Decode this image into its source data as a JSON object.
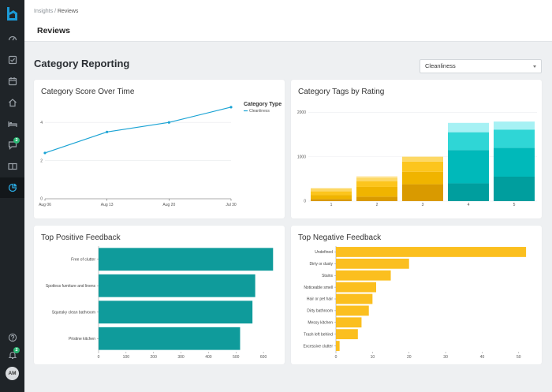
{
  "breadcrumb": {
    "parent": "Insights",
    "separator": " / ",
    "current": "Reviews"
  },
  "page": {
    "title": "Reviews"
  },
  "section": {
    "title": "Category Reporting"
  },
  "category_select": {
    "value": "Cleanliness"
  },
  "sidebar": {
    "items": [
      {
        "icon": "dashboard-icon"
      },
      {
        "icon": "checkbox-icon"
      },
      {
        "icon": "calendar-icon"
      },
      {
        "icon": "home-icon"
      },
      {
        "icon": "bed-icon"
      },
      {
        "icon": "chat-icon",
        "badge": "2"
      },
      {
        "icon": "book-icon"
      },
      {
        "icon": "insights-icon"
      }
    ],
    "bottom": [
      {
        "icon": "help-icon"
      },
      {
        "icon": "bell-icon",
        "badge": "2"
      }
    ],
    "avatar": "AM",
    "colors": {
      "background": "#1f2428",
      "active": "#13171a",
      "badge": "#2bb673",
      "logo": "#1c9ad6"
    }
  },
  "cards": {
    "score_over_time": {
      "title": "Category Score Over Time"
    },
    "tags_by_rating": {
      "title": "Category Tags by Rating"
    },
    "top_positive": {
      "title": "Top Positive Feedback"
    },
    "top_negative": {
      "title": "Top Negative Feedback"
    }
  },
  "chart_data": [
    {
      "id": "score_over_time",
      "type": "line",
      "title": "Category Score Over Time",
      "x_ticks": [
        "Aug 06",
        "Aug 13",
        "Aug 20",
        "Jul 30"
      ],
      "x": [
        0,
        1,
        2,
        3
      ],
      "series": [
        {
          "name": "Cleanliness",
          "values": [
            2.4,
            3.5,
            4.0,
            4.8
          ],
          "color": "#1aa3d4"
        }
      ],
      "legend_title": "Category Type",
      "ylim": [
        0,
        5
      ],
      "y_ticks": [
        0,
        2,
        4
      ],
      "grid": true
    },
    {
      "id": "tags_by_rating",
      "type": "bar",
      "stacked": true,
      "title": "Category Tags by Rating",
      "categories": [
        "1",
        "2",
        "3",
        "4",
        "5"
      ],
      "series": [
        {
          "values": [
            50,
            100,
            380,
            400,
            550
          ],
          "color": "#d99a00"
        },
        {
          "values": [
            90,
            220,
            280,
            750,
            650
          ],
          "color": "#f0b400"
        },
        {
          "values": [
            80,
            130,
            230,
            400,
            410
          ],
          "color": "#fcc51d"
        },
        {
          "values": [
            70,
            80,
            110,
            210,
            180
          ],
          "color": "#fdd865"
        },
        {
          "values": [
            0,
            30,
            0,
            0,
            0
          ],
          "color": "#ffe9a6"
        }
      ],
      "overlay_colors": [
        "#009e9e",
        "#00b9ba",
        "#2fd6d6",
        "#a6f1f4"
      ],
      "ylim": [
        0,
        2200
      ],
      "y_ticks": [
        0,
        1000,
        2000
      ]
    },
    {
      "id": "top_positive",
      "type": "bar",
      "orientation": "horizontal",
      "title": "Top Positive Feedback",
      "categories": [
        "Free of clutter",
        "Spotless furniture and linens",
        "Squeaky clean bathroom",
        "Pristine kitchen"
      ],
      "values": [
        635,
        570,
        560,
        515
      ],
      "color": "#0f9b9b",
      "xlim": [
        0,
        660
      ],
      "x_ticks": [
        0,
        100,
        200,
        300,
        400,
        500,
        600
      ]
    },
    {
      "id": "top_negative",
      "type": "bar",
      "orientation": "horizontal",
      "title": "Top Negative Feedback",
      "categories": [
        "Undefined",
        "Dirty or dusty",
        "Stains",
        "Noticeable smell",
        "Hair or pet hair",
        "Dirty bathroom",
        "Messy kitchen",
        "Trash left behind",
        "Excessive clutter"
      ],
      "values": [
        52,
        20,
        15,
        11,
        10,
        9,
        7,
        6,
        1
      ],
      "color": "#fbbf1f",
      "xlim": [
        0,
        55
      ],
      "x_ticks": [
        0,
        10,
        20,
        30,
        40,
        50
      ]
    }
  ]
}
